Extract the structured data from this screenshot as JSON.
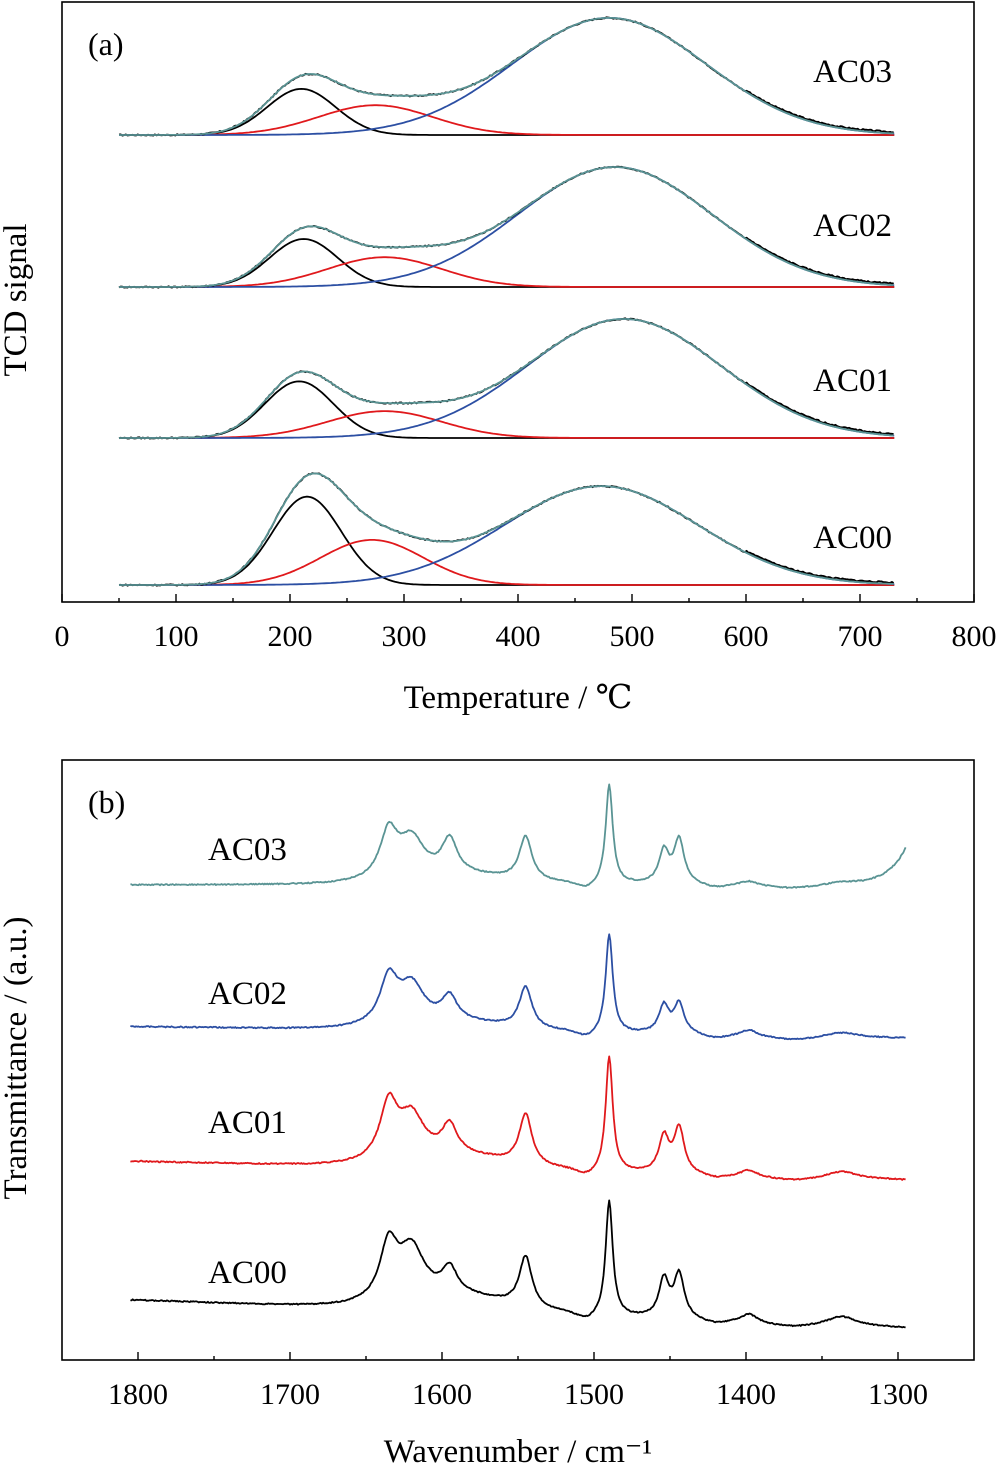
{
  "chart_data": [
    {
      "type": "line",
      "panel_label": "(a)",
      "xlabel": "Temperature / ℃",
      "ylabel": "TCD signal",
      "xlim": [
        0,
        800
      ],
      "x_ticks": [
        0,
        100,
        200,
        300,
        400,
        500,
        600,
        700,
        800
      ],
      "x_range": [
        50,
        730
      ],
      "y_ticks_shown": false,
      "colors": {
        "measured": "#000000",
        "peak_low": "#000000",
        "peak_mid": "#e0191c",
        "peak_high": "#2c4fa3",
        "fit": "#5a9494"
      },
      "series": [
        {
          "name": "AC03",
          "baseline_rise": 0.0,
          "peaks": [
            {
              "component": "peak_low",
              "center": 210,
              "height": 0.48,
              "width": 30
            },
            {
              "component": "peak_mid",
              "center": 275,
              "height": 0.31,
              "width": 50
            },
            {
              "component": "peak_high",
              "center": 480,
              "height": 1.22,
              "width": 85
            }
          ]
        },
        {
          "name": "AC02",
          "baseline_rise": 0.0,
          "peaks": [
            {
              "component": "peak_low",
              "center": 212,
              "height": 0.5,
              "width": 30
            },
            {
              "component": "peak_mid",
              "center": 283,
              "height": 0.31,
              "width": 50
            },
            {
              "component": "peak_high",
              "center": 485,
              "height": 1.25,
              "width": 85
            }
          ]
        },
        {
          "name": "AC01",
          "baseline_rise": 0.0,
          "peaks": [
            {
              "component": "peak_low",
              "center": 208,
              "height": 0.59,
              "width": 30
            },
            {
              "component": "peak_mid",
              "center": 283,
              "height": 0.28,
              "width": 50
            },
            {
              "component": "peak_high",
              "center": 493,
              "height": 1.24,
              "width": 85
            }
          ]
        },
        {
          "name": "AC00",
          "baseline_rise": 0.0,
          "peaks": [
            {
              "component": "peak_low",
              "center": 215,
              "height": 0.92,
              "width": 30
            },
            {
              "component": "peak_mid",
              "center": 272,
              "height": 0.47,
              "width": 45
            },
            {
              "component": "peak_high",
              "center": 473,
              "height": 1.03,
              "width": 85
            }
          ]
        }
      ]
    },
    {
      "type": "line",
      "panel_label": "(b)",
      "xlabel": "Wavenumber / cm⁻¹",
      "ylabel": "Transmittance / (a.u.)",
      "xlim": [
        1850,
        1250
      ],
      "x_ticks": [
        1800,
        1700,
        1600,
        1500,
        1400,
        1300
      ],
      "x_range": [
        1805,
        1295
      ],
      "y_ticks_shown": false,
      "peaks_common": [
        {
          "center": 1635,
          "width": 7
        },
        {
          "center": 1620,
          "width": 10
        },
        {
          "center": 1595,
          "width": 6
        },
        {
          "center": 1545,
          "width": 5
        },
        {
          "center": 1490,
          "width": 2.8
        },
        {
          "center": 1454,
          "width": 4
        },
        {
          "center": 1444,
          "width": 4
        },
        {
          "center": 1398,
          "width": 6
        },
        {
          "center": 1337,
          "width": 12
        }
      ],
      "series": [
        {
          "name": "AC03",
          "color": "#5a9494",
          "offset": 0,
          "slope": 0,
          "broad_band": 0.42,
          "peak_heights": [
            0.4,
            0.33,
            0.3,
            0.38,
            0.86,
            0.28,
            0.38,
            0.03,
            0.02
          ],
          "end_rise": 0.32
        },
        {
          "name": "AC02",
          "color": "#2c4fa3",
          "offset": 0,
          "slope": 0.1,
          "broad_band": 0.4,
          "peak_heights": [
            0.4,
            0.33,
            0.21,
            0.36,
            0.86,
            0.24,
            0.26,
            0.05,
            0.04
          ],
          "end_rise": 0
        },
        {
          "name": "AC01",
          "color": "#e0191c",
          "offset": 0,
          "slope": 0.16,
          "broad_band": 0.6,
          "peak_heights": [
            0.48,
            0.36,
            0.25,
            0.44,
            1.0,
            0.31,
            0.39,
            0.05,
            0.06
          ],
          "end_rise": 0
        },
        {
          "name": "AC00",
          "color": "#000000",
          "offset": 0,
          "slope": 0.24,
          "broad_band": 0.72,
          "peak_heights": [
            0.48,
            0.43,
            0.22,
            0.44,
            1.0,
            0.33,
            0.38,
            0.07,
            0.08
          ],
          "end_rise": 0
        }
      ]
    }
  ]
}
